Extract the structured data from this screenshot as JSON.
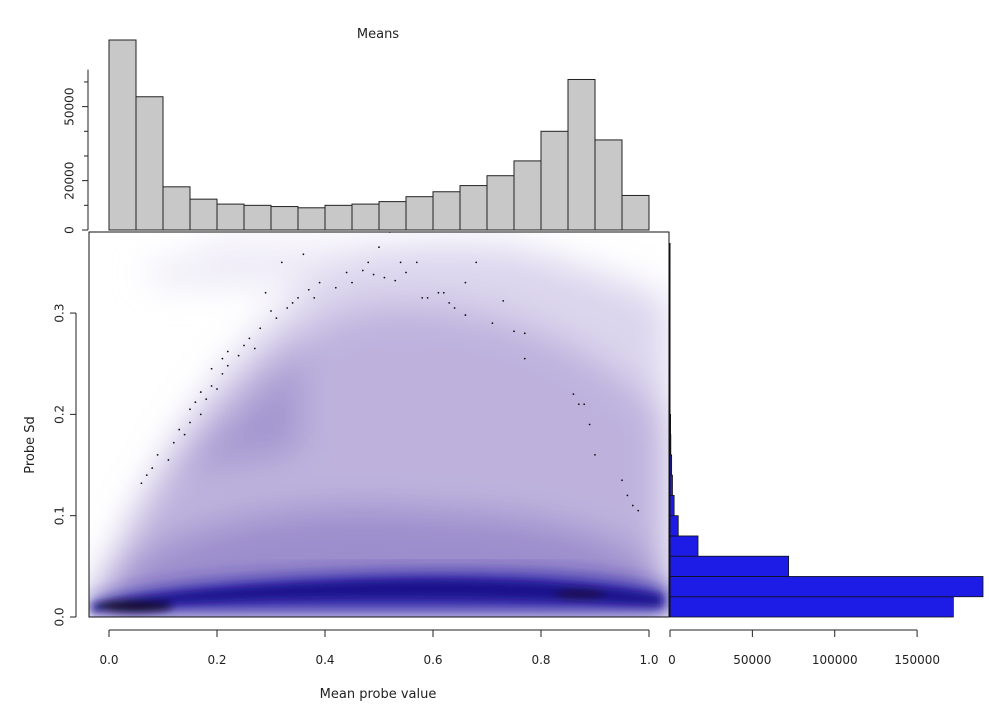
{
  "chart_data": [
    {
      "type": "bar",
      "title": "Means",
      "orientation": "vertical",
      "x_range": [
        0,
        1
      ],
      "bins": [
        [
          0,
          0.05
        ],
        [
          0.05,
          0.1
        ],
        [
          0.1,
          0.15
        ],
        [
          0.15,
          0.2
        ],
        [
          0.2,
          0.25
        ],
        [
          0.25,
          0.3
        ],
        [
          0.3,
          0.35
        ],
        [
          0.35,
          0.4
        ],
        [
          0.4,
          0.45
        ],
        [
          0.45,
          0.5
        ],
        [
          0.5,
          0.55
        ],
        [
          0.55,
          0.6
        ],
        [
          0.6,
          0.65
        ],
        [
          0.65,
          0.7
        ],
        [
          0.7,
          0.75
        ],
        [
          0.75,
          0.8
        ],
        [
          0.8,
          0.85
        ],
        [
          0.85,
          0.9
        ],
        [
          0.9,
          0.95
        ],
        [
          0.95,
          1.0
        ]
      ],
      "values": [
        77000,
        54000,
        17500,
        12500,
        10500,
        10000,
        9500,
        9000,
        10000,
        10500,
        11500,
        13500,
        15500,
        18000,
        22000,
        28000,
        40000,
        61000,
        36500,
        14000
      ],
      "ylim": [
        0,
        77000
      ],
      "y_ticks": [
        0,
        20000,
        50000
      ],
      "y_tick_labels": [
        "0",
        "20000",
        "50000"
      ],
      "color": "#c8c8c8"
    },
    {
      "type": "heatmap",
      "xlabel": "Mean probe value",
      "ylabel": "Probe Sd",
      "xlim": [
        0,
        1
      ],
      "ylim": [
        0,
        0.38
      ],
      "x_ticks": [
        0.0,
        0.2,
        0.4,
        0.6,
        0.8,
        1.0
      ],
      "x_tick_labels": [
        "0.0",
        "0.2",
        "0.4",
        "0.6",
        "0.8",
        "1.0"
      ],
      "y_ticks": [
        0.0,
        0.1,
        0.2,
        0.3
      ],
      "y_tick_labels": [
        "0.0",
        "0.1",
        "0.2",
        "0.3"
      ],
      "palette": [
        "#ffffff",
        "#9f8fc8",
        "#1f1a9a",
        "#120a30"
      ],
      "outliers": [
        [
          0.06,
          0.132
        ],
        [
          0.07,
          0.14
        ],
        [
          0.08,
          0.147
        ],
        [
          0.09,
          0.16
        ],
        [
          0.11,
          0.155
        ],
        [
          0.12,
          0.172
        ],
        [
          0.13,
          0.185
        ],
        [
          0.14,
          0.18
        ],
        [
          0.15,
          0.192
        ],
        [
          0.15,
          0.205
        ],
        [
          0.16,
          0.212
        ],
        [
          0.17,
          0.2
        ],
        [
          0.17,
          0.222
        ],
        [
          0.18,
          0.215
        ],
        [
          0.19,
          0.228
        ],
        [
          0.19,
          0.245
        ],
        [
          0.2,
          0.225
        ],
        [
          0.21,
          0.24
        ],
        [
          0.21,
          0.255
        ],
        [
          0.22,
          0.248
        ],
        [
          0.22,
          0.262
        ],
        [
          0.24,
          0.258
        ],
        [
          0.25,
          0.268
        ],
        [
          0.26,
          0.275
        ],
        [
          0.27,
          0.265
        ],
        [
          0.28,
          0.285
        ],
        [
          0.29,
          0.32
        ],
        [
          0.3,
          0.302
        ],
        [
          0.31,
          0.295
        ],
        [
          0.32,
          0.35
        ],
        [
          0.33,
          0.305
        ],
        [
          0.34,
          0.31
        ],
        [
          0.35,
          0.315
        ],
        [
          0.36,
          0.358
        ],
        [
          0.37,
          0.323
        ],
        [
          0.38,
          0.315
        ],
        [
          0.39,
          0.33
        ],
        [
          0.42,
          0.325
        ],
        [
          0.44,
          0.34
        ],
        [
          0.45,
          0.33
        ],
        [
          0.47,
          0.342
        ],
        [
          0.48,
          0.35
        ],
        [
          0.49,
          0.338
        ],
        [
          0.5,
          0.365
        ],
        [
          0.51,
          0.335
        ],
        [
          0.52,
          0.38
        ],
        [
          0.53,
          0.332
        ],
        [
          0.54,
          0.35
        ],
        [
          0.55,
          0.34
        ],
        [
          0.57,
          0.35
        ],
        [
          0.58,
          0.315
        ],
        [
          0.59,
          0.315
        ],
        [
          0.61,
          0.32
        ],
        [
          0.62,
          0.32
        ],
        [
          0.63,
          0.31
        ],
        [
          0.64,
          0.305
        ],
        [
          0.66,
          0.298
        ],
        [
          0.66,
          0.33
        ],
        [
          0.68,
          0.35
        ],
        [
          0.71,
          0.29
        ],
        [
          0.73,
          0.312
        ],
        [
          0.75,
          0.282
        ],
        [
          0.77,
          0.28
        ],
        [
          0.77,
          0.255
        ],
        [
          0.86,
          0.22
        ],
        [
          0.87,
          0.21
        ],
        [
          0.88,
          0.21
        ],
        [
          0.89,
          0.19
        ],
        [
          0.9,
          0.16
        ],
        [
          0.95,
          0.135
        ],
        [
          0.96,
          0.12
        ],
        [
          0.97,
          0.11
        ],
        [
          0.98,
          0.105
        ]
      ]
    },
    {
      "type": "bar",
      "orientation": "horizontal",
      "bins": [
        [
          0,
          0.02
        ],
        [
          0.02,
          0.04
        ],
        [
          0.04,
          0.06
        ],
        [
          0.06,
          0.08
        ],
        [
          0.08,
          0.1
        ],
        [
          0.1,
          0.12
        ],
        [
          0.12,
          0.14
        ],
        [
          0.14,
          0.16
        ],
        [
          0.16,
          0.18
        ],
        [
          0.18,
          0.2
        ]
      ],
      "values": [
        172000,
        190000,
        72000,
        17000,
        5000,
        2500,
        1500,
        1000,
        500,
        300
      ],
      "xlim": [
        0,
        190000
      ],
      "x_ticks": [
        0,
        50000,
        100000,
        150000
      ],
      "x_tick_labels": [
        "0",
        "50000",
        "100000",
        "150000"
      ],
      "color": "#1c1ce6"
    }
  ]
}
